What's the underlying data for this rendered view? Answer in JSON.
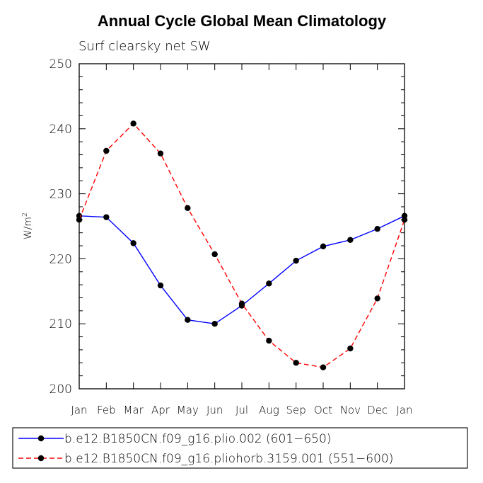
{
  "chart_data": {
    "type": "line",
    "title": "Annual Cycle Global Mean Climatology",
    "subtitle": "Surf clearsky net SW",
    "xlabel": "",
    "ylabel": "W/m",
    "ylabel_superscript": "2",
    "categories": [
      "Jan",
      "Feb",
      "Mar",
      "Apr",
      "May",
      "Jun",
      "Jul",
      "Aug",
      "Sep",
      "Oct",
      "Nov",
      "Dec",
      "Jan"
    ],
    "ylim": [
      200,
      250
    ],
    "yticks": [
      200,
      210,
      220,
      230,
      240,
      250
    ],
    "yticks_minor_step": 2,
    "grid": false,
    "legend_position": "bottom",
    "series": [
      {
        "name": "b.e12.B1850CN.f09_g16.plio.002 (601−650)",
        "color": "#0000ff",
        "dash": "solid",
        "values": [
          226.6,
          226.4,
          222.4,
          215.9,
          210.6,
          210.0,
          212.8,
          216.2,
          219.7,
          221.9,
          222.9,
          224.6,
          226.6
        ]
      },
      {
        "name": "b.e12.B1850CN.f09_g16.pliohorb.3159.001 (551−600)",
        "color": "#ff0000",
        "dash": "dashed",
        "values": [
          226.0,
          236.6,
          240.8,
          236.2,
          227.8,
          220.7,
          213.1,
          207.4,
          204.0,
          203.3,
          206.2,
          213.9,
          226.0
        ]
      }
    ]
  }
}
